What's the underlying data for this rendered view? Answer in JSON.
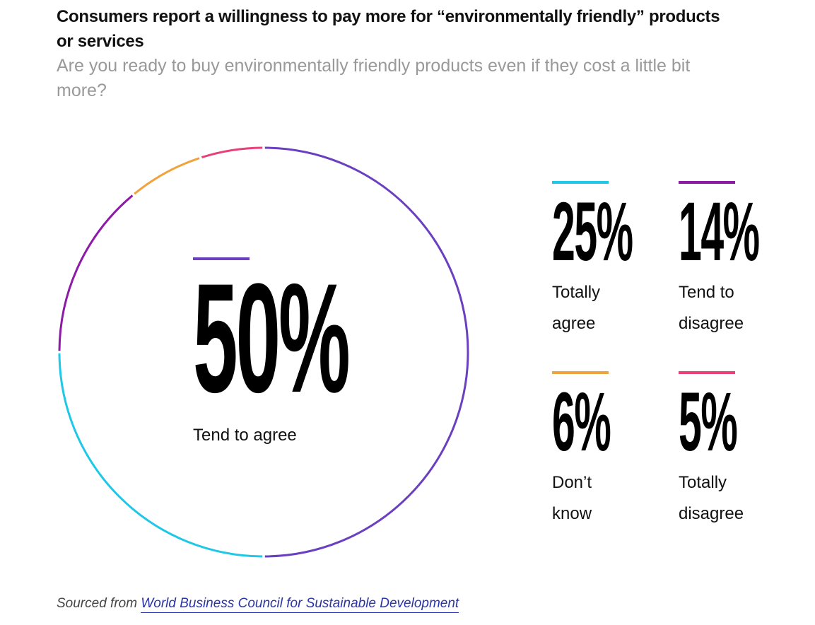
{
  "header": {
    "title": "Consumers report a willingness to pay more for “environmentally friendly” products or services",
    "subtitle": "Are you ready to buy environmentally friendly products even if they cost a little bit more?"
  },
  "source": {
    "prefix": "Sourced from",
    "link_text": "World Business Council for Sustainable Development"
  },
  "chart_data": {
    "type": "pie",
    "style": "donut-ring",
    "title": "Consumers report a willingness to pay more for “environmentally friendly” products or services",
    "subtitle": "Are you ready to buy environmentally friendly products even if they cost a little bit more?",
    "slices": [
      {
        "label": "Tend to agree",
        "value": 50,
        "display": "50%",
        "color": "#6a3fc0"
      },
      {
        "label": "Totally agree",
        "value": 25,
        "display": "25%",
        "color": "#1ec8e6"
      },
      {
        "label": "Tend to disagree",
        "value": 14,
        "display": "14%",
        "color": "#8e1aa8"
      },
      {
        "label": "Don’t know",
        "value": 6,
        "display": "6%",
        "color": "#f0a23c"
      },
      {
        "label": "Totally disagree",
        "value": 5,
        "display": "5%",
        "color": "#e8417a"
      }
    ],
    "stat_labels": [
      [
        "Tend to agree"
      ],
      [
        "Totally",
        "agree"
      ],
      [
        "Tend to",
        "disagree"
      ],
      [
        "Don’t",
        "know"
      ],
      [
        "Totally",
        "disagree"
      ]
    ]
  }
}
